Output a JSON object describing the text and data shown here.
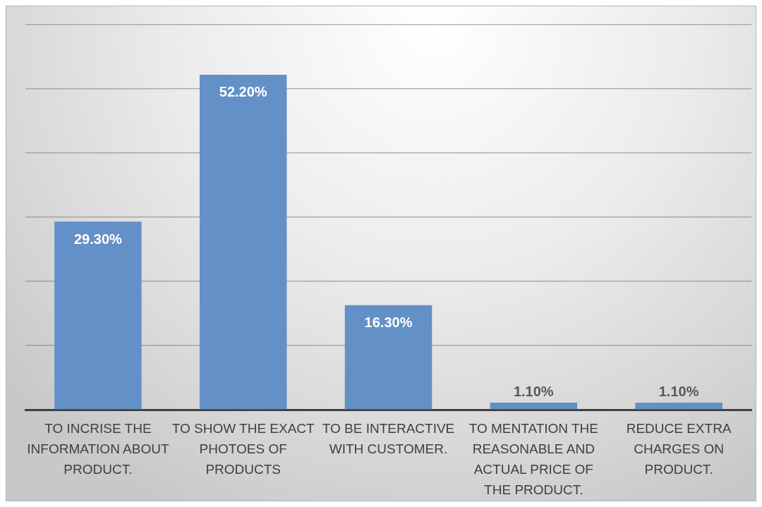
{
  "chart_data": {
    "type": "bar",
    "categories": [
      "TO INCRISE THE INFORMATION ABOUT PRODUCT.",
      "TO SHOW THE EXACT PHOTOES OF PRODUCTS",
      "TO BE INTERACTIVE WITH CUSTOMER.",
      "TO MENTATION THE REASONABLE AND ACTUAL PRICE OF THE PRODUCT.",
      "REDUCE EXTRA CHARGES ON PRODUCT."
    ],
    "values": [
      29.3,
      52.2,
      16.3,
      1.1,
      1.1
    ],
    "value_labels": [
      "29.30%",
      "52.20%",
      "16.30%",
      "1.10%",
      "1.10%"
    ],
    "color": "#6390c6",
    "ylim": [
      0,
      60
    ],
    "yticks": [
      {
        "value": 0,
        "label": null
      },
      {
        "value": 10,
        "label": null
      },
      {
        "value": 20,
        "label": null
      },
      {
        "value": 30,
        "label": null
      },
      {
        "value": 40,
        "label": null
      },
      {
        "value": 50,
        "label": null
      },
      {
        "value": 60,
        "label": null
      }
    ],
    "grid": "y",
    "tick_labels": "x"
  }
}
